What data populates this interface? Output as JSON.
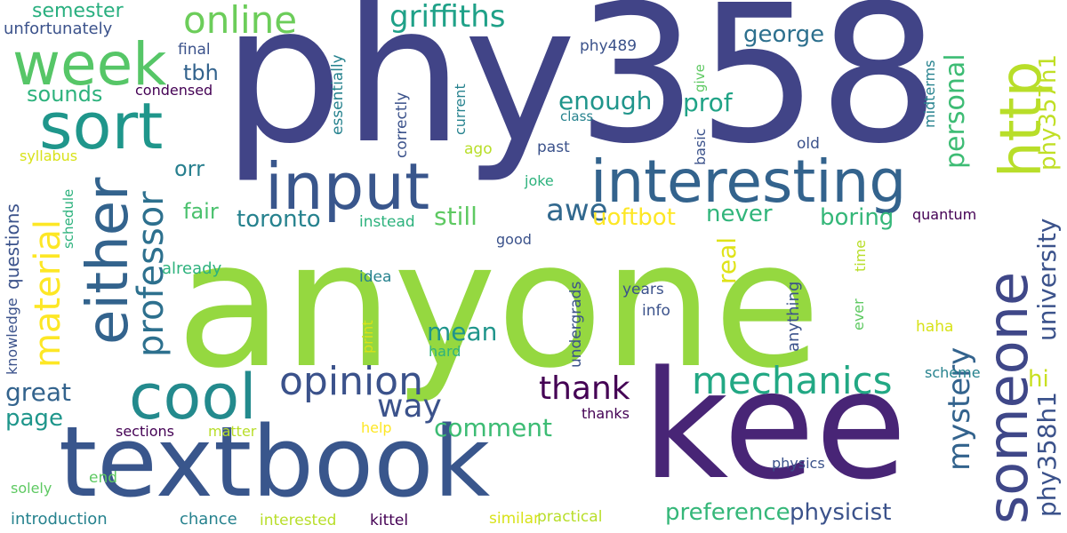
{
  "words": [
    {
      "text": "anyone",
      "color": "#95d840"
    },
    {
      "text": "phy358",
      "color": "#414487"
    },
    {
      "text": "kee",
      "color": "#482576"
    },
    {
      "text": "textbook",
      "color": "#39568c"
    },
    {
      "text": "input",
      "color": "#39568c"
    },
    {
      "text": "interesting",
      "color": "#33638d"
    },
    {
      "text": "someone",
      "color": "#3f4788"
    },
    {
      "text": "http",
      "color": "#b8de29"
    },
    {
      "text": "either",
      "color": "#33638d"
    },
    {
      "text": "cool",
      "color": "#238a8d"
    },
    {
      "text": "sort",
      "color": "#1f968b"
    },
    {
      "text": "week",
      "color": "#56c667"
    },
    {
      "text": "online",
      "color": "#6ccd5a"
    },
    {
      "text": "opinion",
      "color": "#3b528b"
    },
    {
      "text": "mechanics",
      "color": "#22a884"
    },
    {
      "text": "material",
      "color": "#fde725"
    },
    {
      "text": "professor",
      "color": "#2d708e"
    },
    {
      "text": "griffiths",
      "color": "#1fa188"
    },
    {
      "text": "mystery",
      "color": "#33638d"
    },
    {
      "text": "phy358h1",
      "color": "#3b528b"
    },
    {
      "text": "physicist",
      "color": "#3b528b"
    },
    {
      "text": "preference",
      "color": "#35b779"
    },
    {
      "text": "thank",
      "color": "#440154"
    },
    {
      "text": "way",
      "color": "#3b528b"
    },
    {
      "text": "awe",
      "color": "#31688e"
    },
    {
      "text": "comment",
      "color": "#3dbc74"
    },
    {
      "text": "personal",
      "color": "#3dbc74"
    },
    {
      "text": "university",
      "color": "#3b528b"
    },
    {
      "text": "phy357h1",
      "color": "#c0df25"
    },
    {
      "text": "george",
      "color": "#2d708e"
    },
    {
      "text": "enough",
      "color": "#1f958b"
    },
    {
      "text": "prof",
      "color": "#20a386"
    },
    {
      "text": "boring",
      "color": "#35b779"
    },
    {
      "text": "uoftbot",
      "color": "#fde725"
    },
    {
      "text": "toronto",
      "color": "#26828e"
    },
    {
      "text": "still",
      "color": "#5ec962"
    },
    {
      "text": "never",
      "color": "#31b57b"
    },
    {
      "text": "real",
      "color": "#dfe318"
    },
    {
      "text": "mean",
      "color": "#1f958b"
    },
    {
      "text": "great",
      "color": "#33638d"
    },
    {
      "text": "page",
      "color": "#1f968b"
    },
    {
      "text": "hi",
      "color": "#c8e020"
    },
    {
      "text": "fair",
      "color": "#4ac16d"
    },
    {
      "text": "orr",
      "color": "#277f8e"
    },
    {
      "text": "tbh",
      "color": "#33638d"
    },
    {
      "text": "sounds",
      "color": "#2db27d"
    },
    {
      "text": "semester",
      "color": "#29af7f"
    },
    {
      "text": "unfortunately",
      "color": "#3b528b"
    },
    {
      "text": "final",
      "color": "#3b528b"
    },
    {
      "text": "condensed",
      "color": "#440154"
    },
    {
      "text": "syllabus",
      "color": "#d8e219"
    },
    {
      "text": "knowledge",
      "color": "#3b528b"
    },
    {
      "text": "questions",
      "color": "#3b528b"
    },
    {
      "text": "schedule",
      "color": "#2db27d"
    },
    {
      "text": "already",
      "color": "#2db27d"
    },
    {
      "text": "essentially",
      "color": "#26828e"
    },
    {
      "text": "correctly",
      "color": "#3b528b"
    },
    {
      "text": "current",
      "color": "#26828e"
    },
    {
      "text": "ago",
      "color": "#b8de29"
    },
    {
      "text": "past",
      "color": "#3b528b"
    },
    {
      "text": "class",
      "color": "#26828e"
    },
    {
      "text": "phy489",
      "color": "#3b528b"
    },
    {
      "text": "give",
      "color": "#5ec962"
    },
    {
      "text": "basic",
      "color": "#3b528b"
    },
    {
      "text": "old",
      "color": "#3b528b"
    },
    {
      "text": "midterms",
      "color": "#26828e"
    },
    {
      "text": "joke",
      "color": "#2db27d"
    },
    {
      "text": "instead",
      "color": "#2db27d"
    },
    {
      "text": "good",
      "color": "#3b528b"
    },
    {
      "text": "quantum",
      "color": "#440154"
    },
    {
      "text": "time",
      "color": "#b8de29"
    },
    {
      "text": "ever",
      "color": "#5ec962"
    },
    {
      "text": "anything",
      "color": "#3b528b"
    },
    {
      "text": "years",
      "color": "#3b528b"
    },
    {
      "text": "info",
      "color": "#3b528b"
    },
    {
      "text": "undergrads",
      "color": "#3b528b"
    },
    {
      "text": "idea",
      "color": "#26828e"
    },
    {
      "text": "print",
      "color": "#d8e219"
    },
    {
      "text": "hard",
      "color": "#2db27d"
    },
    {
      "text": "haha",
      "color": "#d8e219"
    },
    {
      "text": "scheme",
      "color": "#26828e"
    },
    {
      "text": "thanks",
      "color": "#440154"
    },
    {
      "text": "physics",
      "color": "#3b528b"
    },
    {
      "text": "sections",
      "color": "#440154"
    },
    {
      "text": "matter",
      "color": "#b8de29"
    },
    {
      "text": "help",
      "color": "#fde725"
    },
    {
      "text": "end",
      "color": "#5ec962"
    },
    {
      "text": "solely",
      "color": "#5ec962"
    },
    {
      "text": "introduction",
      "color": "#26828e"
    },
    {
      "text": "chance",
      "color": "#26828e"
    },
    {
      "text": "interested",
      "color": "#b8de29"
    },
    {
      "text": "kittel",
      "color": "#440154"
    },
    {
      "text": "similar",
      "color": "#d8e219"
    },
    {
      "text": "practical",
      "color": "#b8de29"
    }
  ]
}
